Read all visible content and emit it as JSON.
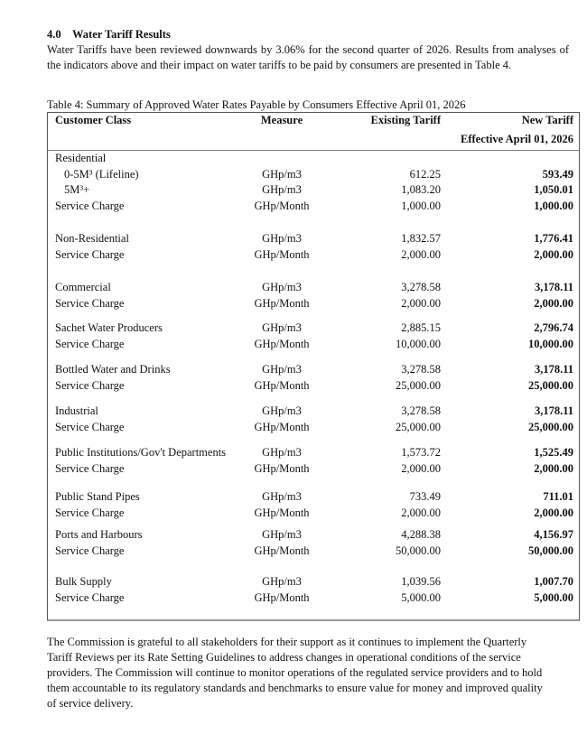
{
  "section": {
    "number": "4.0",
    "title": "Water Tariff Results"
  },
  "intro": "Water Tariffs have been reviewed downwards by 3.06% for the second quarter of 2026. Results from analyses of the indicators above and their impact on water tariffs to be paid by consumers are presented in Table 4.",
  "table": {
    "caption": "Table 4: Summary of Approved Water Rates Payable by Consumers Effective April 01, 2026",
    "headers": {
      "customer_class": "Customer Class",
      "measure": "Measure",
      "existing": "Existing Tariff",
      "new": "New Tariff",
      "new_sub": "Effective April 01, 2026"
    },
    "groups": [
      {
        "rows": [
          {
            "label": "Residential",
            "measure": "",
            "existing": "",
            "new": ""
          },
          {
            "label": "0-5M³ (Lifeline)",
            "indent": true,
            "measure": "GHp/m3",
            "existing": "612.25",
            "new": "593.49"
          },
          {
            "label": "5M³+",
            "indent": true,
            "measure": "GHp/m3",
            "existing": "1,083.20",
            "new": "1,050.01"
          },
          {
            "label": "Service Charge",
            "measure": "GHp/Month",
            "existing": "1,000.00",
            "new": "1,000.00"
          }
        ]
      },
      {
        "rows": [
          {
            "label": "Non-Residential",
            "measure": "GHp/m3",
            "existing": "1,832.57",
            "new": "1,776.41"
          },
          {
            "label": "Service Charge",
            "measure": "GHp/Month",
            "existing": "2,000.00",
            "new": "2,000.00"
          }
        ]
      },
      {
        "rows": [
          {
            "label": "Commercial",
            "measure": "GHp/m3",
            "existing": "3,278.58",
            "new": "3,178.11"
          },
          {
            "label": "Service Charge",
            "measure": "GHp/Month",
            "existing": "2,000.00",
            "new": "2,000.00"
          }
        ]
      },
      {
        "rows": [
          {
            "label": "Sachet Water Producers",
            "measure": "GHp/m3",
            "existing": "2,885.15",
            "new": "2,796.74"
          },
          {
            "label": "Service Charge",
            "measure": "GHp/Month",
            "existing": "10,000.00",
            "new": "10,000.00"
          }
        ]
      },
      {
        "rows": [
          {
            "label": "Bottled Water and Drinks",
            "measure": "GHp/m3",
            "existing": "3,278.58",
            "new": "3,178.11"
          },
          {
            "label": "Service Charge",
            "measure": "GHp/Month",
            "existing": "25,000.00",
            "new": "25,000.00"
          }
        ]
      },
      {
        "rows": [
          {
            "label": "Industrial",
            "measure": "GHp/m3",
            "existing": "3,278.58",
            "new": "3,178.11"
          },
          {
            "label": "Service Charge",
            "measure": "GHp/Month",
            "existing": "25,000.00",
            "new": "25,000.00"
          }
        ]
      },
      {
        "rows": [
          {
            "label": "Public Institutions/Gov't Departments",
            "measure": "GHp/m3",
            "existing": "1,573.72",
            "new": "1,525.49"
          },
          {
            "label": "Service Charge",
            "measure": "GHp/Month",
            "existing": "2,000.00",
            "new": "2,000.00"
          }
        ]
      },
      {
        "rows": [
          {
            "label": "Public Stand Pipes",
            "measure": "GHp/m3",
            "existing": "733.49",
            "new": "711.01"
          },
          {
            "label": "Service Charge",
            "measure": "GHp/Month",
            "existing": "2,000.00",
            "new": "2,000.00"
          }
        ]
      },
      {
        "rows": [
          {
            "label": "Ports and Harbours",
            "measure": "GHp/m3",
            "existing": "4,288.38",
            "new": "4,156.97"
          },
          {
            "label": "Service Charge",
            "measure": "GHp/Month",
            "existing": "50,000.00",
            "new": "50,000.00"
          }
        ]
      },
      {
        "rows": [
          {
            "label": "Bulk Supply",
            "measure": "GHp/m3",
            "existing": "1,039.56",
            "new": "1,007.70"
          },
          {
            "label": "Service Charge",
            "measure": "GHp/Month",
            "existing": "5,000.00",
            "new": "5,000.00"
          }
        ]
      }
    ]
  },
  "outro": "The Commission is grateful to all stakeholders for their support as it continues to implement the Quarterly Tariff Reviews per its Rate Setting Guidelines to address changes in operational conditions of the service providers. The Commission will continue to monitor operations of the regulated service providers and to hold them accountable to its regulatory standards and benchmarks to ensure value for money and improved quality of service delivery."
}
